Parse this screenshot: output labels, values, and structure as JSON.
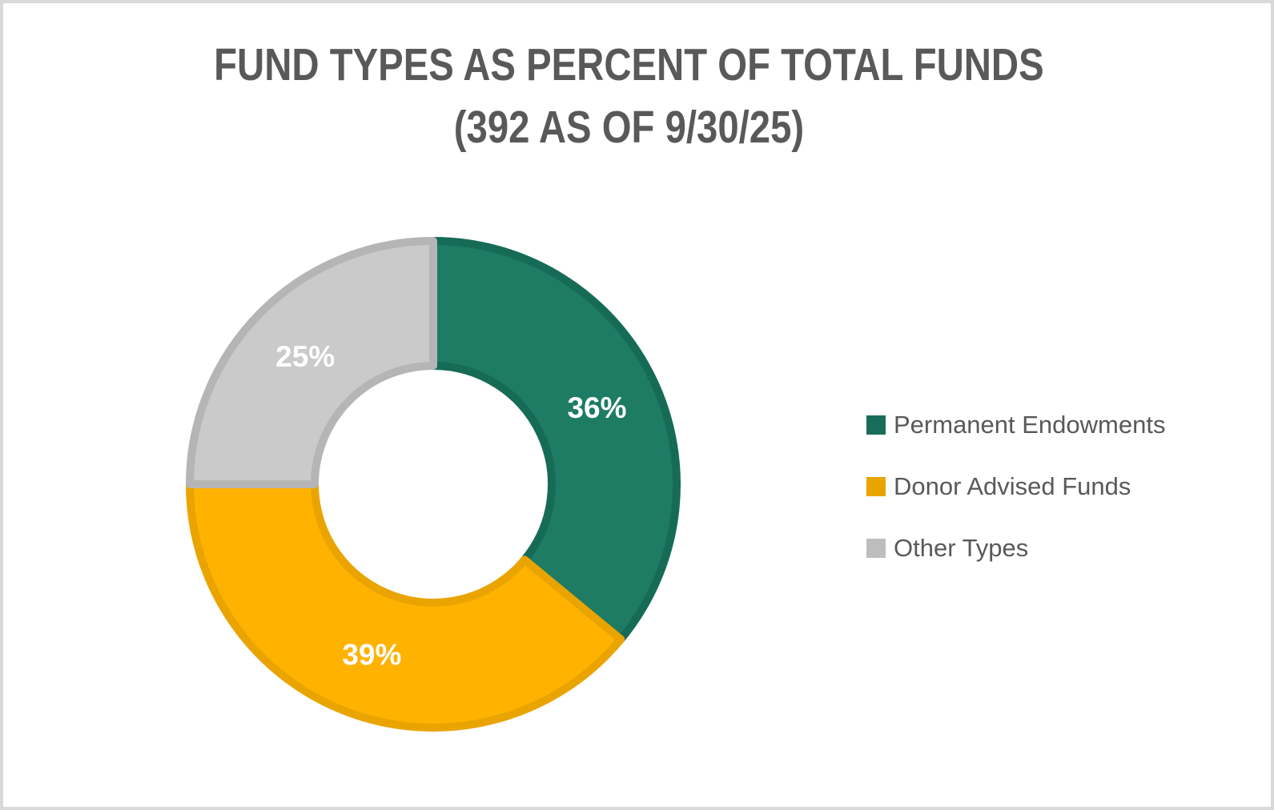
{
  "frame": {
    "background": "#ffffff",
    "border_color": "#d9d9d9"
  },
  "title": {
    "line1": "FUND TYPES AS PERCENT OF TOTAL FUNDS",
    "line2": "(392 AS OF 9/30/25)",
    "color": "#595959"
  },
  "chart_data": {
    "type": "pie",
    "subtype": "donut",
    "title": "FUND TYPES AS PERCENT OF TOTAL FUNDS (392 AS OF 9/30/25)",
    "total_funds": 392,
    "as_of_date": "9/30/25",
    "categories": [
      "Permanent Endowments",
      "Donor Advised Funds",
      "Other Types"
    ],
    "values": [
      36,
      39,
      25
    ],
    "unit": "percent",
    "data_labels": [
      "36%",
      "39%",
      "25%"
    ],
    "start_angle_deg": 0,
    "direction": "clockwise",
    "outer_radius": 304,
    "inner_radius": 148,
    "slice_border_width": 10,
    "colors": {
      "fill": [
        "#1E7B64",
        "#FFB300",
        "#CACACA"
      ],
      "border": [
        "#166B57",
        "#EAA400",
        "#B5B5B5"
      ]
    },
    "data_label_color": "#FFFFFF",
    "legend_position": "right"
  },
  "legend": {
    "text_color": "#595959",
    "items": [
      {
        "label": "Permanent Endowments",
        "color": "#186C5B"
      },
      {
        "label": "Donor Advised Funds",
        "color": "#E8A400"
      },
      {
        "label": "Other Types",
        "color": "#BDBDBD"
      }
    ]
  }
}
